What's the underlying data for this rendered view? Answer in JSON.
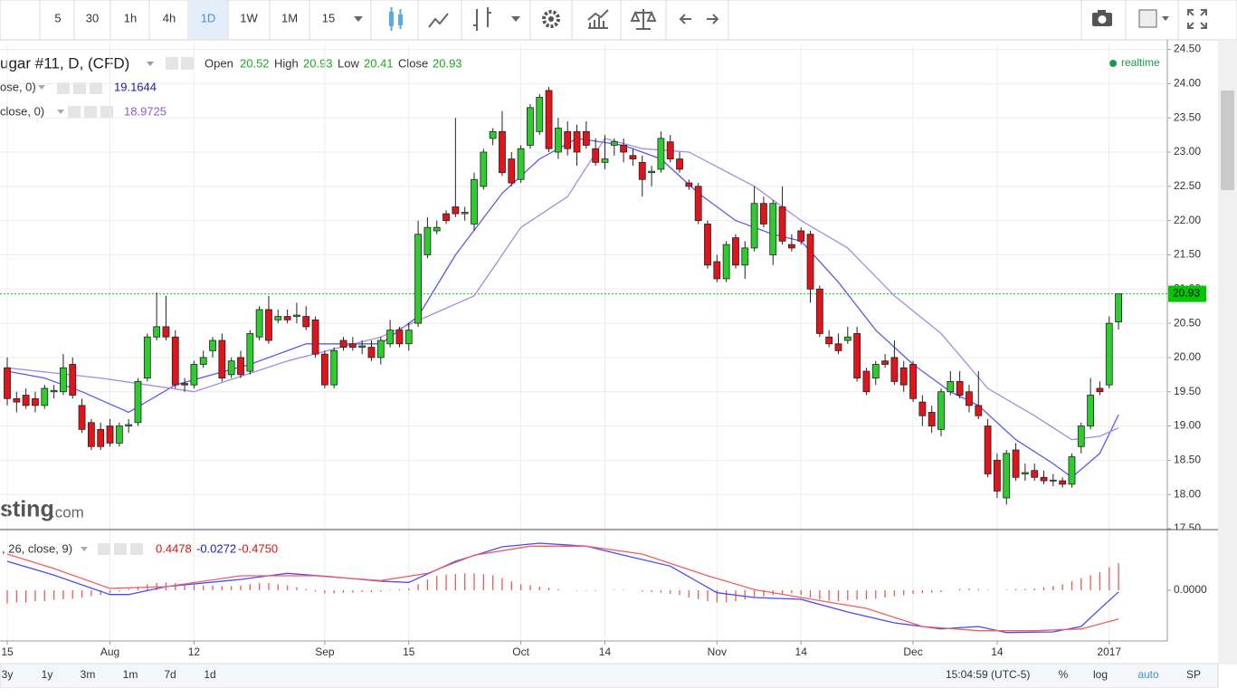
{
  "chart_data": [
    {
      "type": "candlestick",
      "title": "ugar #11, D, (CFD)",
      "ohlc_labels": [
        "Open",
        "High",
        "Low",
        "Close"
      ],
      "categories": [
        "15",
        null,
        null,
        null,
        null,
        null,
        null,
        null,
        null,
        null,
        null,
        "Aug",
        null,
        null,
        null,
        null,
        null,
        null,
        null,
        null,
        "12",
        null,
        null,
        null,
        null,
        null,
        null,
        null,
        null,
        null,
        null,
        null,
        null,
        null,
        "Sep",
        null,
        null,
        null,
        null,
        null,
        null,
        null,
        null,
        "15",
        null,
        null,
        null,
        null,
        null,
        null,
        null,
        null,
        null,
        null,
        null,
        "Oct",
        null,
        null,
        null,
        null,
        null,
        null,
        null,
        null,
        "14",
        null,
        null,
        null,
        null,
        null,
        null,
        null,
        null,
        null,
        null,
        null,
        "Nov",
        null,
        null,
        null,
        null,
        null,
        null,
        null,
        null,
        "14",
        null,
        null,
        null,
        null,
        null,
        null,
        null,
        null,
        null,
        null,
        null,
        "Dec",
        null,
        null,
        null,
        null,
        null,
        null,
        null,
        null,
        "14",
        null,
        null,
        null,
        null,
        null,
        null,
        null,
        null,
        null,
        null,
        null,
        "2017",
        null
      ],
      "open": [
        19.85,
        19.4,
        19.45,
        19.4,
        19.3,
        19.5,
        19.5,
        19.9,
        19.3,
        19.05,
        18.95,
        19.0,
        18.75,
        19.0,
        19.05,
        19.7,
        20.3,
        20.45,
        20.3,
        19.62,
        19.6,
        19.9,
        20.1,
        20.25,
        19.75,
        20.0,
        19.8,
        20.3,
        20.7,
        20.55,
        20.6,
        20.6,
        20.6,
        20.55,
        20.05,
        19.6,
        20.25,
        20.2,
        20.15,
        20.15,
        20.0,
        20.2,
        20.4,
        20.2,
        20.5,
        21.5,
        21.85,
        22.1,
        22.2,
        22.1,
        21.95,
        22.5,
        23.2,
        23.3,
        22.9,
        22.6,
        23.1,
        23.3,
        23.9,
        23.0,
        23.3,
        23.3,
        23.3,
        23.05,
        22.85,
        23.1,
        23.1,
        22.95,
        22.85,
        22.7,
        22.75,
        23.15,
        22.9,
        22.55,
        22.5,
        21.95,
        21.4,
        21.15,
        21.75,
        21.35,
        21.6,
        22.25,
        21.5,
        22.2,
        21.65,
        21.85,
        21.8,
        21.0,
        20.3,
        20.2,
        20.25,
        20.35,
        19.8,
        19.7,
        19.95,
        20.0,
        19.85,
        19.9,
        19.35,
        19.2,
        18.95,
        19.5,
        19.65,
        19.5,
        19.3,
        19.0,
        18.5,
        17.95,
        18.65,
        18.3,
        18.35,
        18.25,
        18.2,
        18.2,
        18.15,
        18.7,
        19.0,
        19.55,
        19.6,
        20.52
      ],
      "high": [
        20.0,
        19.5,
        19.55,
        19.5,
        19.6,
        19.6,
        20.05,
        20.0,
        19.4,
        19.1,
        19.05,
        19.1,
        19.05,
        19.1,
        19.7,
        20.35,
        20.95,
        20.9,
        20.4,
        19.7,
        19.95,
        20.1,
        20.3,
        20.35,
        20.0,
        20.1,
        20.4,
        20.75,
        20.9,
        20.7,
        20.7,
        20.8,
        20.75,
        20.6,
        20.1,
        20.15,
        20.3,
        20.3,
        20.25,
        20.25,
        20.3,
        20.55,
        20.45,
        20.5,
        22.0,
        22.05,
        22.0,
        22.15,
        23.5,
        22.2,
        22.7,
        23.05,
        23.35,
        23.6,
        23.0,
        23.1,
        23.7,
        23.85,
        23.95,
        23.5,
        23.45,
        23.4,
        23.45,
        23.2,
        23.25,
        23.2,
        23.2,
        23.05,
        22.95,
        22.8,
        23.3,
        23.25,
        23.0,
        22.6,
        22.55,
        22.0,
        21.5,
        21.7,
        21.8,
        21.7,
        22.5,
        22.35,
        22.3,
        22.5,
        21.8,
        21.9,
        21.85,
        21.05,
        20.4,
        20.35,
        20.45,
        20.45,
        19.85,
        19.95,
        20.05,
        20.25,
        19.95,
        19.95,
        19.45,
        19.3,
        19.55,
        19.8,
        19.8,
        19.6,
        19.8,
        19.1,
        18.6,
        18.65,
        18.75,
        18.45,
        18.45,
        18.35,
        18.3,
        18.25,
        18.6,
        19.05,
        19.7,
        19.65,
        20.6,
        20.93
      ],
      "low": [
        19.3,
        19.2,
        19.25,
        19.2,
        19.25,
        19.4,
        19.45,
        19.4,
        18.9,
        18.65,
        18.65,
        18.7,
        18.7,
        18.9,
        19.0,
        19.65,
        20.25,
        20.25,
        19.55,
        19.5,
        19.55,
        19.85,
        20.0,
        19.65,
        19.7,
        19.7,
        19.75,
        20.25,
        20.2,
        20.5,
        20.5,
        20.5,
        20.4,
        20.0,
        19.55,
        19.55,
        20.1,
        20.1,
        20.05,
        19.95,
        19.9,
        20.15,
        20.15,
        20.1,
        20.45,
        21.45,
        21.8,
        21.95,
        22.05,
        22.0,
        21.85,
        22.45,
        23.1,
        22.65,
        22.5,
        22.55,
        23.05,
        23.25,
        23.0,
        22.9,
        22.95,
        22.8,
        23.05,
        22.8,
        22.75,
        22.95,
        22.85,
        22.8,
        22.35,
        22.5,
        22.7,
        22.85,
        22.7,
        22.45,
        21.95,
        21.3,
        21.1,
        21.1,
        21.3,
        21.15,
        21.55,
        21.9,
        21.35,
        21.65,
        21.55,
        21.65,
        20.8,
        20.3,
        20.15,
        20.05,
        20.2,
        19.65,
        19.45,
        19.6,
        19.85,
        19.6,
        19.5,
        19.35,
        19.0,
        18.9,
        18.85,
        19.45,
        19.4,
        19.2,
        19.1,
        18.25,
        17.95,
        17.85,
        18.2,
        18.2,
        18.2,
        18.15,
        18.12,
        18.1,
        18.1,
        18.6,
        18.95,
        19.45,
        19.55,
        20.41
      ],
      "close": [
        19.4,
        19.35,
        19.3,
        19.3,
        19.55,
        19.52,
        19.85,
        19.45,
        18.95,
        18.7,
        18.7,
        18.75,
        19.0,
        19.02,
        19.65,
        20.3,
        20.45,
        20.3,
        19.6,
        19.6,
        19.9,
        20.0,
        20.25,
        19.7,
        19.95,
        19.75,
        20.35,
        20.7,
        20.25,
        20.6,
        20.55,
        20.62,
        20.45,
        20.05,
        19.6,
        20.1,
        20.15,
        20.15,
        20.17,
        20.0,
        20.25,
        20.4,
        20.2,
        20.4,
        21.8,
        21.9,
        21.9,
        22.0,
        22.1,
        22.12,
        22.6,
        23.0,
        23.3,
        22.7,
        22.55,
        23.05,
        23.65,
        23.8,
        23.05,
        23.35,
        23.05,
        23.0,
        23.1,
        22.85,
        22.9,
        23.15,
        23.0,
        22.9,
        22.6,
        22.72,
        23.2,
        22.9,
        22.75,
        22.5,
        22.0,
        21.35,
        21.15,
        21.65,
        21.35,
        21.6,
        22.25,
        21.95,
        22.25,
        21.7,
        21.6,
        21.7,
        21.0,
        20.35,
        20.2,
        20.1,
        20.3,
        19.7,
        19.5,
        19.9,
        19.9,
        19.65,
        19.6,
        19.4,
        19.15,
        19.0,
        19.5,
        19.65,
        19.45,
        19.3,
        19.15,
        18.3,
        18.05,
        18.6,
        18.25,
        18.32,
        18.25,
        18.2,
        18.21,
        18.15,
        18.55,
        19.0,
        19.45,
        19.5,
        20.5,
        20.93
      ],
      "up_color": "#2ecc2e",
      "down_color": "#e0141b",
      "last_price_color": "#00c800",
      "ylim": [
        17.5,
        24.6
      ],
      "yticks": [
        {
          "value": 17.5,
          "label": "17.50"
        },
        {
          "value": 18,
          "label": "18.00"
        },
        {
          "value": 18.5,
          "label": "18.50"
        },
        {
          "value": 19,
          "label": "19.00"
        },
        {
          "value": 19.5,
          "label": "19.50"
        },
        {
          "value": 20,
          "label": "20.00"
        },
        {
          "value": 20.5,
          "label": "20.50"
        },
        {
          "value": 21,
          "label": "21.00"
        },
        {
          "value": 21.5,
          "label": "21.50"
        },
        {
          "value": 22,
          "label": "22.00"
        },
        {
          "value": 22.5,
          "label": "22.50"
        },
        {
          "value": 23,
          "label": "23.00"
        },
        {
          "value": 23.5,
          "label": "23.50"
        },
        {
          "value": 24,
          "label": "24.00"
        },
        {
          "value": 24.5,
          "label": "24.50"
        }
      ],
      "grid": true,
      "series": [
        {
          "name": "ose, 0)",
          "color": "#5a5af0",
          "label_color": "#1a1aa8",
          "x": [
            0,
            4,
            8,
            13,
            18,
            22,
            26,
            32,
            36,
            40,
            44,
            48,
            53,
            57,
            61,
            66,
            70,
            74,
            78,
            82,
            85,
            89,
            93,
            97,
            101,
            104,
            108,
            112,
            114,
            117,
            119
          ],
          "values": [
            19.8,
            19.7,
            19.5,
            19.2,
            19.6,
            19.75,
            19.9,
            20.2,
            20.2,
            20.2,
            20.6,
            21.5,
            22.4,
            22.9,
            23.2,
            23.1,
            22.9,
            22.4,
            22.0,
            21.8,
            21.7,
            21.1,
            20.4,
            19.9,
            19.5,
            19.3,
            18.8,
            18.45,
            18.25,
            18.6,
            19.1644
          ]
        },
        {
          "name": "close, 0)",
          "color": "#a48ce6",
          "label_color": "#8a5cd8",
          "x": [
            0,
            10,
            20,
            30,
            40,
            45,
            50,
            55,
            60,
            64,
            68,
            73,
            80,
            85,
            90,
            95,
            100,
            105,
            110,
            114,
            117,
            119
          ],
          "values": [
            19.85,
            19.7,
            19.5,
            19.95,
            20.3,
            20.6,
            20.9,
            21.9,
            22.35,
            23.2,
            23.05,
            23.0,
            22.5,
            22.0,
            21.6,
            20.9,
            20.35,
            19.55,
            19.15,
            18.8,
            18.85,
            18.9725
          ]
        }
      ]
    },
    {
      "type": "macd",
      "title": ", 26, close, 9)",
      "histogram": {
        "color": "#f05a5a",
        "values": [
          -0.22,
          -0.2,
          -0.2,
          -0.18,
          -0.18,
          -0.16,
          -0.15,
          -0.14,
          -0.12,
          -0.1,
          -0.08,
          -0.05,
          -0.02,
          0.02,
          0.06,
          0.1,
          0.12,
          0.13,
          0.12,
          0.1,
          0.09,
          0.08,
          0.08,
          0.07,
          0.07,
          0.08,
          0.1,
          0.12,
          0.12,
          0.1,
          0.08,
          0.05,
          0.02,
          -0.02,
          -0.05,
          -0.05,
          -0.04,
          -0.04,
          -0.03,
          -0.03,
          -0.02,
          0.01,
          0.02,
          0.03,
          0.1,
          0.18,
          0.24,
          0.26,
          0.27,
          0.28,
          0.28,
          0.27,
          0.25,
          0.2,
          0.15,
          0.1,
          0.08,
          0.06,
          0.04,
          0.02,
          0.0,
          -0.01,
          -0.01,
          -0.01,
          0.0,
          0.01,
          0.01,
          0.0,
          -0.02,
          -0.03,
          -0.04,
          -0.06,
          -0.08,
          -0.12,
          -0.15,
          -0.18,
          -0.2,
          -0.2,
          -0.18,
          -0.15,
          -0.12,
          -0.1,
          -0.08,
          -0.06,
          -0.05,
          -0.08,
          -0.12,
          -0.15,
          -0.17,
          -0.18,
          -0.17,
          -0.16,
          -0.15,
          -0.14,
          -0.12,
          -0.1,
          -0.08,
          -0.06,
          -0.05,
          -0.04,
          -0.03,
          0.0,
          0.02,
          0.03,
          0.02,
          0.01,
          0.0,
          0.01,
          0.02,
          0.02,
          0.03,
          0.05,
          0.07,
          0.1,
          0.15,
          0.2,
          0.25,
          0.3,
          0.38,
          0.4478
        ]
      },
      "series": [
        {
          "color": "#4a4af5",
          "label_color": "#1a1ac8",
          "x": [
            0,
            5,
            11,
            13,
            17,
            25,
            30,
            35,
            40,
            43,
            48,
            53,
            57,
            62,
            66,
            71,
            76,
            80,
            85,
            90,
            95,
            100,
            104,
            107,
            112,
            115,
            117,
            119
          ],
          "values": [
            0.48,
            0.25,
            -0.07,
            -0.07,
            0.06,
            0.18,
            0.28,
            0.22,
            0.15,
            0.13,
            0.48,
            0.72,
            0.78,
            0.73,
            0.58,
            0.4,
            -0.04,
            -0.12,
            -0.15,
            -0.36,
            -0.54,
            -0.64,
            -0.6,
            -0.7,
            -0.69,
            -0.6,
            -0.31,
            -0.0272
          ]
        },
        {
          "color": "#f06060",
          "label_color": "#e01010",
          "x": [
            0,
            5,
            11,
            17,
            25,
            33,
            40,
            45,
            50,
            56,
            62,
            68,
            75,
            80,
            85,
            92,
            98,
            104,
            110,
            115,
            119
          ],
          "values": [
            0.6,
            0.36,
            0.03,
            0.06,
            0.24,
            0.24,
            0.16,
            0.28,
            0.58,
            0.73,
            0.73,
            0.6,
            0.24,
            0.01,
            -0.12,
            -0.3,
            -0.6,
            -0.67,
            -0.67,
            -0.64,
            -0.475
          ],
          "value_labels": [
            null,
            null,
            null,
            null,
            null,
            null,
            null,
            null,
            null,
            null,
            null,
            null,
            null,
            null,
            null,
            null,
            null,
            null,
            null,
            null,
            "-0.4750"
          ]
        }
      ],
      "ylim": [
        -0.84,
        0.93
      ],
      "yticks": [
        {
          "value": 0,
          "label": "0.0000"
        }
      ]
    }
  ],
  "ui": {
    "toolbar": [
      "5",
      "30",
      "1h",
      "4h",
      "1D",
      "1W",
      "1M",
      "15"
    ],
    "realtime": "realtime",
    "watermark": [
      "sting",
      ".com"
    ],
    "ranges": [
      "3y",
      "1y",
      "3m",
      "1m",
      "7d",
      "1d"
    ],
    "time": "15:04:59 (UTC-5)",
    "options": [
      "%",
      "log",
      "auto",
      "SP"
    ]
  }
}
